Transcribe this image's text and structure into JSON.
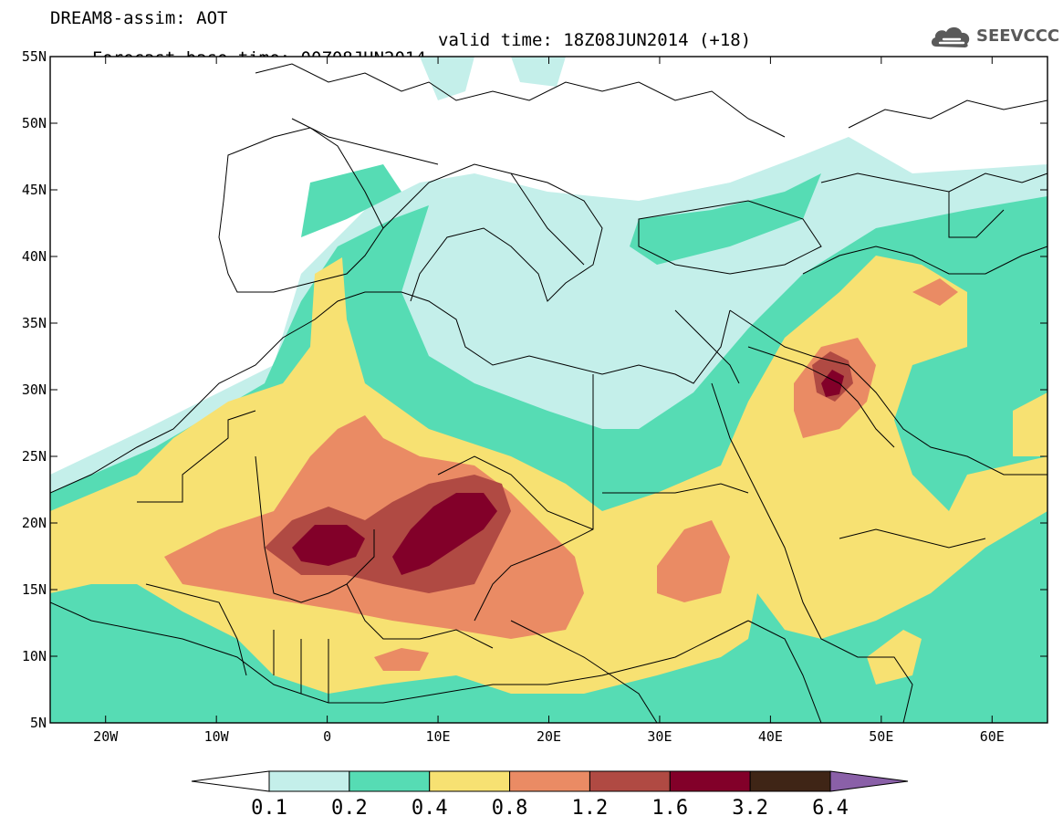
{
  "header": {
    "line1": "DREAM8-assim: AOT",
    "line2_base": "Forecast base time: 00Z08JUN2014",
    "line2_valid": "valid time: 18Z08JUN2014 (+18)"
  },
  "logo": {
    "text": "SEEVCCC",
    "icon": "cloud-icon",
    "color": "#5a5a5a"
  },
  "map": {
    "lon_range": [
      -25,
      65
    ],
    "lat_range": [
      5,
      55
    ],
    "lon_ticks": [
      {
        "value": -20,
        "label": "20W"
      },
      {
        "value": -10,
        "label": "10W"
      },
      {
        "value": 0,
        "label": "0"
      },
      {
        "value": 10,
        "label": "10E"
      },
      {
        "value": 20,
        "label": "20E"
      },
      {
        "value": 30,
        "label": "30E"
      },
      {
        "value": 40,
        "label": "40E"
      },
      {
        "value": 50,
        "label": "50E"
      },
      {
        "value": 60,
        "label": "60E"
      }
    ],
    "lat_ticks": [
      {
        "value": 5,
        "label": "5N"
      },
      {
        "value": 10,
        "label": "10N"
      },
      {
        "value": 15,
        "label": "15N"
      },
      {
        "value": 20,
        "label": "20N"
      },
      {
        "value": 25,
        "label": "25N"
      },
      {
        "value": 30,
        "label": "30N"
      },
      {
        "value": 35,
        "label": "35N"
      },
      {
        "value": 40,
        "label": "40N"
      },
      {
        "value": 45,
        "label": "45N"
      },
      {
        "value": 50,
        "label": "50N"
      },
      {
        "value": 55,
        "label": "55N"
      }
    ]
  },
  "legend": {
    "levels": [
      "0.1",
      "0.2",
      "0.4",
      "0.8",
      "1.2",
      "1.6",
      "3.2",
      "6.4"
    ],
    "colors": [
      "#ffffff",
      "#c4efea",
      "#56dcb4",
      "#f7e172",
      "#ea8b64",
      "#b04a43",
      "#820029",
      "#3f2516",
      "#8a60a8"
    ]
  }
}
